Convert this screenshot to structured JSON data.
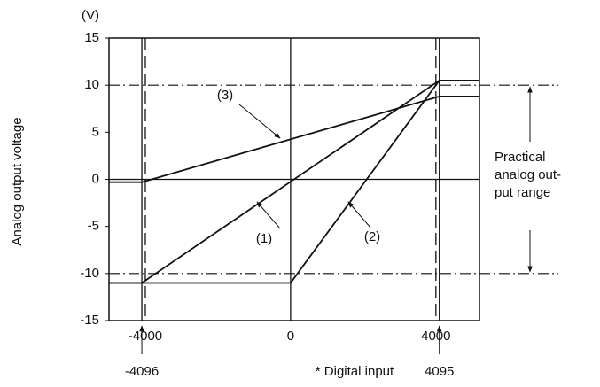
{
  "chart_data": {
    "type": "line",
    "y_unit": "(V)",
    "ylabel": "Analog output voltage",
    "xlabel": "* Digital input",
    "xlim": [
      -5000,
      5200
    ],
    "xticks": [
      -4000,
      0,
      4000
    ],
    "ylim": [
      -15,
      15
    ],
    "yticks": [
      15,
      10,
      5,
      0,
      -5,
      -10,
      -15
    ],
    "x_markers": [
      -4096,
      4095
    ],
    "range_lines": [
      10,
      -10
    ],
    "range_label": [
      "Practical",
      "analog out-",
      "put range"
    ],
    "series": [
      {
        "name": "(1)",
        "color": "#111",
        "x": [
          -5000,
          -4096,
          4095,
          5200
        ],
        "values": [
          -11,
          -11,
          10.5,
          10.5
        ]
      },
      {
        "name": "(2)",
        "color": "#111",
        "x": [
          -5000,
          0,
          4095,
          5200
        ],
        "values": [
          -11,
          -11,
          10.5,
          10.5
        ]
      },
      {
        "name": "(3)",
        "color": "#111",
        "x": [
          -5000,
          -4096,
          4095,
          5200
        ],
        "values": [
          -0.3,
          -0.3,
          8.8,
          8.8
        ]
      }
    ]
  }
}
